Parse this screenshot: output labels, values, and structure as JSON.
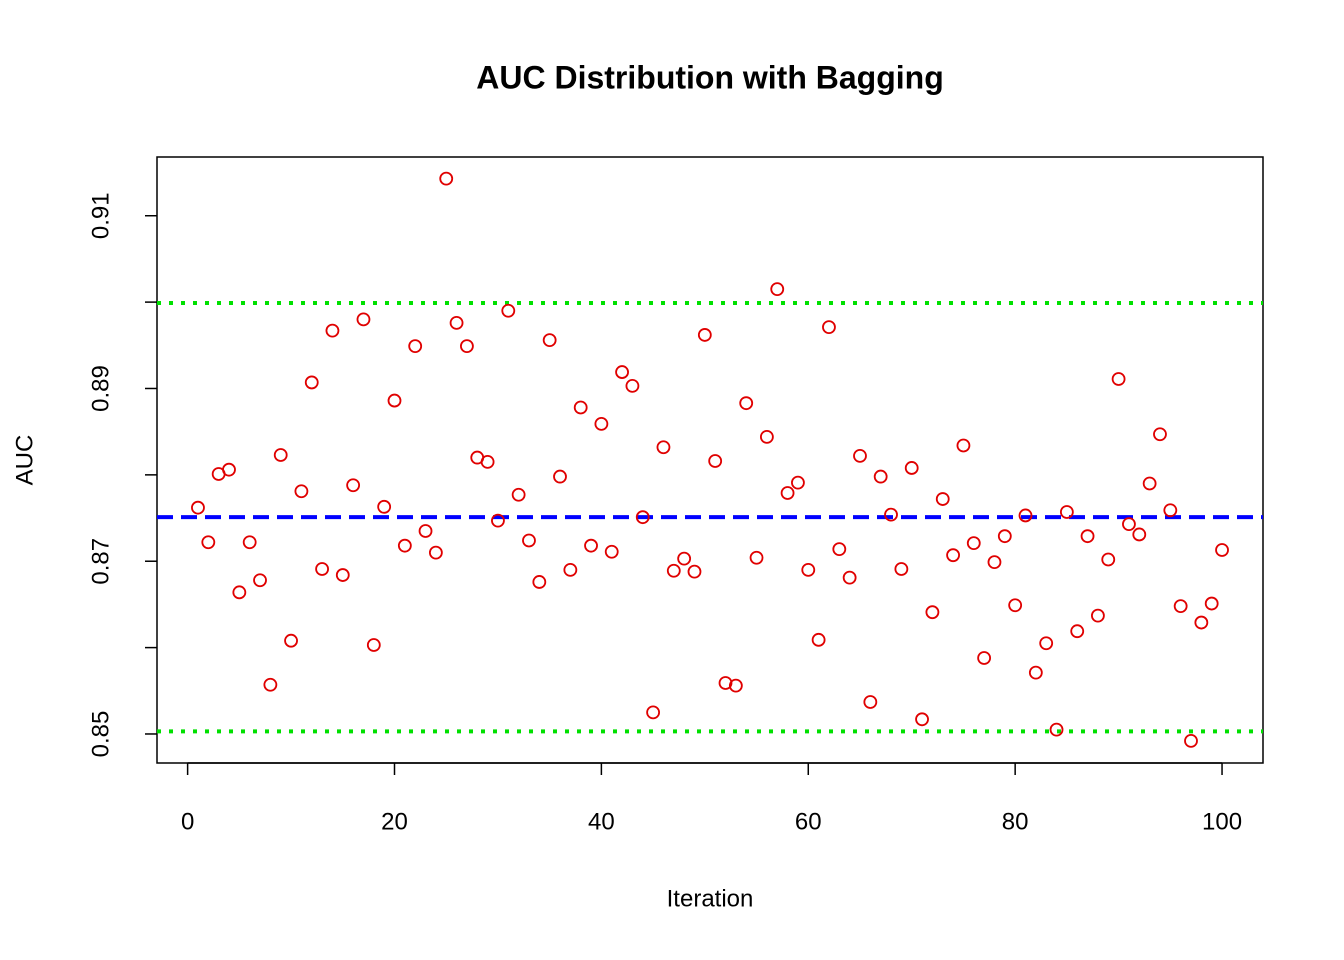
{
  "chart_data": {
    "type": "scatter",
    "title": "AUC Distribution with Bagging",
    "x_label": "Iteration",
    "y_label": "AUC",
    "series": [
      {
        "color": "#e00000",
        "x": [
          1,
          2,
          3,
          4,
          5,
          6,
          7,
          8,
          9,
          10,
          11,
          12,
          13,
          14,
          15,
          16,
          17,
          18,
          19,
          20,
          21,
          22,
          23,
          24,
          25,
          26,
          27,
          28,
          29,
          30,
          31,
          32,
          33,
          34,
          35,
          36,
          37,
          38,
          39,
          40,
          41,
          42,
          43,
          44,
          45,
          46,
          47,
          48,
          49,
          50,
          51,
          52,
          53,
          54,
          55,
          56,
          57,
          58,
          59,
          60,
          61,
          62,
          63,
          64,
          65,
          66,
          67,
          68,
          69,
          70,
          71,
          72,
          73,
          74,
          75,
          76,
          77,
          78,
          79,
          80,
          81,
          82,
          83,
          84,
          85,
          86,
          87,
          88,
          89,
          90,
          91,
          92,
          93,
          94,
          95,
          96,
          97,
          98,
          99,
          100
        ],
        "values": [
          0.8762,
          0.8722,
          0.8801,
          0.8806,
          0.8664,
          0.8722,
          0.8678,
          0.8557,
          0.8823,
          0.8608,
          0.8781,
          0.8907,
          0.8691,
          0.8967,
          0.8684,
          0.8788,
          0.898,
          0.8603,
          0.8763,
          0.8886,
          0.8718,
          0.8949,
          0.8735,
          0.871,
          0.9143,
          0.8976,
          0.8949,
          0.882,
          0.8815,
          0.8747,
          0.899,
          0.8777,
          0.8724,
          0.8676,
          0.8956,
          0.8798,
          0.869,
          0.8878,
          0.8718,
          0.8859,
          0.8711,
          0.8919,
          0.8903,
          0.8751,
          0.8525,
          0.8832,
          0.8689,
          0.8703,
          0.8688,
          0.8962,
          0.8816,
          0.8559,
          0.8556,
          0.8883,
          0.8704,
          0.8844,
          0.9015,
          0.8779,
          0.8791,
          0.869,
          0.8609,
          0.8971,
          0.8714,
          0.8681,
          0.8822,
          0.8537,
          0.8798,
          0.8754,
          0.8691,
          0.8808,
          0.8517,
          0.8641,
          0.8772,
          0.8707,
          0.8834,
          0.8721,
          0.8588,
          0.8699,
          0.8729,
          0.8649,
          0.8753,
          0.8571,
          0.8605,
          0.8505,
          0.8757,
          0.8619,
          0.8729,
          0.8637,
          0.8702,
          0.8911,
          0.8743,
          0.8731,
          0.879,
          0.8847,
          0.8759,
          0.8648,
          0.8492,
          0.8629,
          0.8651,
          0.8713
        ]
      }
    ],
    "hlines": [
      {
        "value": 0.8751,
        "color": "#0000ff",
        "style": "dashed"
      },
      {
        "value": 0.8999,
        "color": "#00e000",
        "style": "dotted"
      },
      {
        "value": 0.8503,
        "color": "#00e000",
        "style": "dotted"
      }
    ],
    "xlim": [
      -2.96,
      103.96
    ],
    "xticks": [
      0,
      20,
      40,
      60,
      80,
      100
    ],
    "ylim": [
      0.84664,
      0.9168
    ],
    "yticks": [
      0.85,
      {
        "value": 0.86,
        "label": null
      },
      0.87,
      {
        "value": 0.88,
        "label": null
      },
      0.89,
      {
        "value": 0.9,
        "label": null
      },
      0.91
    ]
  }
}
